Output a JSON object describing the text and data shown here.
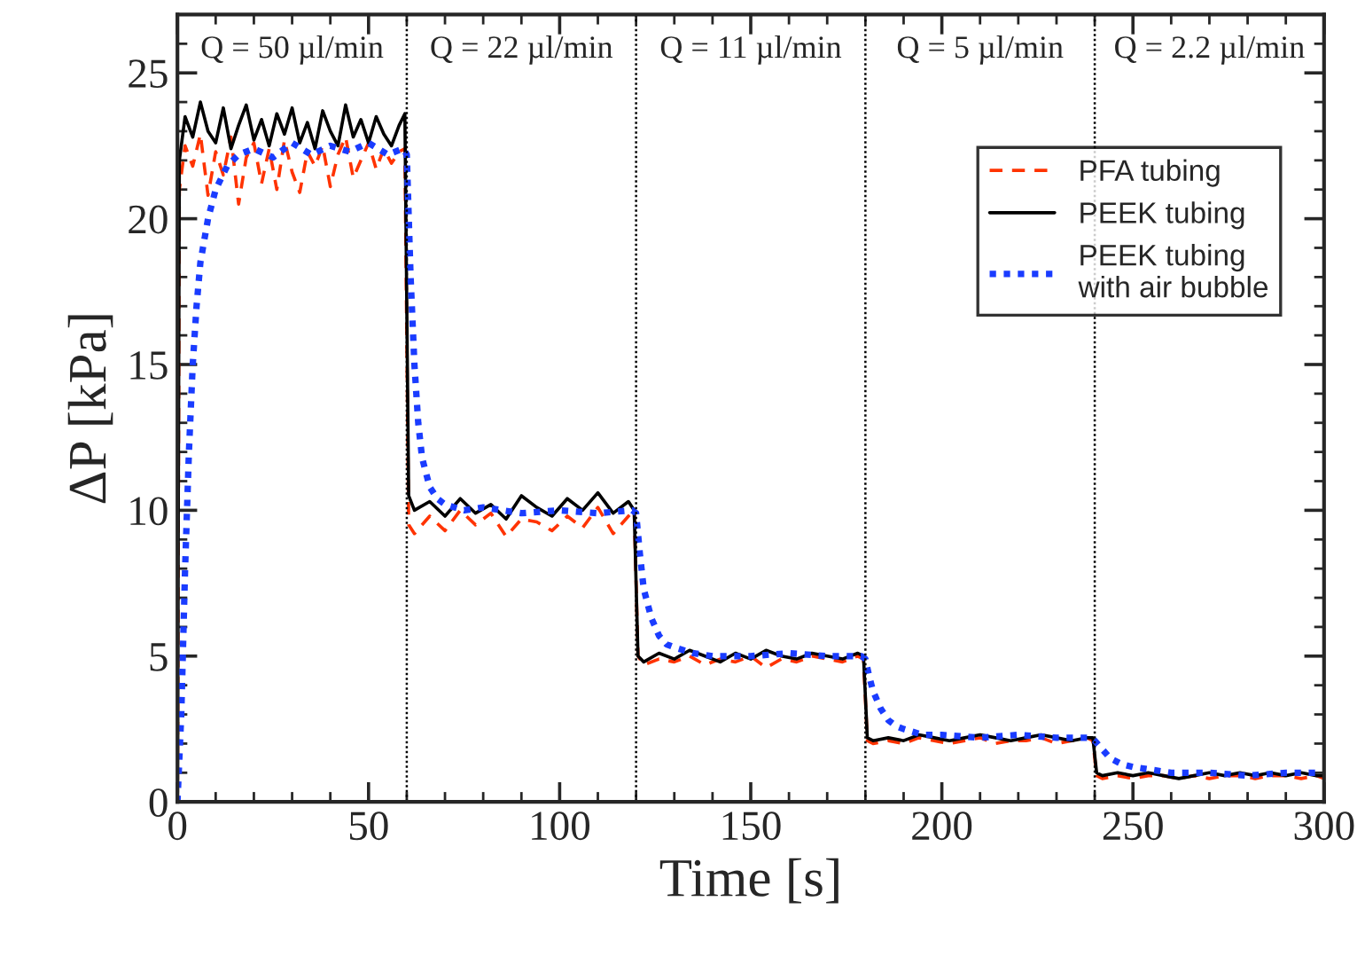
{
  "chart_data": {
    "type": "line",
    "xlabel": "Time [s]",
    "ylabel": "ΔP [kPa]",
    "xlim": [
      0,
      300
    ],
    "xticks": [
      0,
      50,
      100,
      150,
      200,
      250,
      300
    ],
    "ylim": [
      0,
      27
    ],
    "yticks": [
      0,
      5,
      10,
      15,
      20,
      25
    ],
    "grid": false,
    "legend": "top right",
    "marker": "none",
    "ref_lines": [
      {
        "axis": "x",
        "value": 60,
        "line_style": "dotted",
        "color": "#000000"
      },
      {
        "axis": "x",
        "value": 120,
        "line_style": "dotted",
        "color": "#000000"
      },
      {
        "axis": "x",
        "value": 180,
        "line_style": "dotted",
        "color": "#000000"
      },
      {
        "axis": "x",
        "value": 240,
        "line_style": "dotted",
        "color": "#000000"
      }
    ],
    "annotations": [
      "Q = 50 µl/min",
      "Q = 22 µl/min",
      "Q = 11 µl/min",
      "Q = 5 µl/min",
      "Q = 2.2 µl/min"
    ],
    "series": [
      {
        "name": "PFA tubing",
        "color": "#ff3300",
        "line_style": "dashed",
        "x": [
          0,
          0.5,
          2,
          4,
          6,
          8,
          10,
          12,
          14,
          16,
          18,
          20,
          22,
          24,
          26,
          28,
          30,
          32,
          34,
          36,
          38,
          40,
          42,
          44,
          46,
          48,
          50,
          52,
          54,
          56,
          58,
          59.5,
          60.5,
          62,
          66,
          70,
          74,
          78,
          82,
          86,
          90,
          94,
          98,
          102,
          106,
          110,
          114,
          118,
          119.5,
          120.5,
          122,
          126,
          130,
          134,
          138,
          142,
          146,
          150,
          154,
          158,
          162,
          166,
          170,
          174,
          178,
          179.5,
          180.5,
          182,
          186,
          190,
          194,
          198,
          202,
          206,
          210,
          214,
          218,
          222,
          226,
          230,
          234,
          238,
          239.5,
          240.5,
          242,
          246,
          250,
          254,
          258,
          262,
          266,
          270,
          274,
          278,
          282,
          286,
          290,
          294,
          298,
          300
        ],
        "values": [
          0,
          21,
          22.5,
          21.8,
          22.9,
          20.8,
          22.3,
          21.5,
          22.8,
          20.5,
          22.1,
          22.6,
          21.2,
          22.4,
          21,
          22.7,
          21.6,
          20.9,
          22.3,
          21.8,
          22.5,
          21.1,
          22.2,
          22.8,
          21.4,
          22,
          22.6,
          21.7,
          22.4,
          21.9,
          22.3,
          22.4,
          9.5,
          9.2,
          9.8,
          9.3,
          10,
          9.5,
          9.9,
          9.1,
          9.7,
          9.6,
          9.3,
          9.8,
          9.4,
          10.1,
          9.2,
          9.8,
          10,
          5,
          4.7,
          4.9,
          4.8,
          5,
          4.7,
          4.9,
          4.8,
          5,
          4.6,
          4.9,
          4.8,
          5,
          4.9,
          4.8,
          5,
          4.9,
          2.1,
          2,
          2.1,
          2,
          2.2,
          2.1,
          2,
          2.1,
          2.2,
          2,
          2.1,
          2.1,
          2.2,
          2,
          2.1,
          2.2,
          2.1,
          0.9,
          0.8,
          0.9,
          0.8,
          0.9,
          0.9,
          0.8,
          0.9,
          0.8,
          0.9,
          0.9,
          0.8,
          0.9,
          0.9,
          0.8,
          0.9,
          0.8
        ]
      },
      {
        "name": "PEEK tubing",
        "color": "#000000",
        "line_style": "solid",
        "x": [
          0,
          0.5,
          2,
          4,
          6,
          8,
          10,
          12,
          14,
          16,
          18,
          20,
          22,
          24,
          26,
          28,
          30,
          32,
          34,
          36,
          38,
          40,
          42,
          44,
          46,
          48,
          50,
          52,
          54,
          56,
          58,
          59.5,
          60.5,
          62,
          66,
          70,
          74,
          78,
          82,
          86,
          90,
          94,
          98,
          102,
          106,
          110,
          114,
          118,
          119.5,
          120.5,
          122,
          126,
          130,
          134,
          138,
          142,
          146,
          150,
          154,
          158,
          162,
          166,
          170,
          174,
          178,
          179.5,
          180.5,
          182,
          186,
          190,
          194,
          198,
          202,
          206,
          210,
          214,
          218,
          222,
          226,
          230,
          234,
          238,
          239.5,
          240.5,
          242,
          246,
          250,
          254,
          258,
          262,
          266,
          270,
          274,
          278,
          282,
          286,
          290,
          294,
          298,
          300
        ],
        "values": [
          0,
          22,
          23.5,
          22.8,
          24,
          23,
          22.6,
          23.8,
          22.4,
          23.2,
          23.9,
          22.7,
          23.4,
          22.5,
          23.6,
          22.9,
          23.8,
          22.6,
          23.3,
          22.4,
          23.7,
          23,
          22.5,
          23.9,
          22.8,
          23.4,
          22.6,
          23.5,
          22.9,
          22.5,
          23.2,
          23.6,
          10.5,
          10,
          10.3,
          9.8,
          10.4,
          9.9,
          10.2,
          9.7,
          10.5,
          10.1,
          9.8,
          10.4,
          10,
          10.6,
          9.9,
          10.3,
          10,
          5,
          4.8,
          5.1,
          4.9,
          5.2,
          5,
          4.8,
          5.1,
          4.9,
          5.2,
          5,
          4.9,
          5.1,
          5,
          4.9,
          5.1,
          5,
          2.2,
          2.1,
          2.2,
          2.1,
          2.3,
          2.2,
          2.1,
          2.2,
          2.3,
          2.2,
          2.1,
          2.2,
          2.3,
          2.2,
          2.1,
          2.2,
          2.2,
          1,
          0.9,
          1,
          0.9,
          1,
          0.9,
          0.8,
          0.9,
          1,
          0.9,
          1,
          0.9,
          1,
          0.9,
          1,
          0.9,
          0.9
        ]
      },
      {
        "name": "PEEK tubing\nwith air bubble",
        "color": "#1a3cff",
        "line_style": "dotted",
        "x": [
          0,
          1,
          2,
          3,
          4,
          5,
          6,
          8,
          10,
          13,
          16,
          20,
          25,
          30,
          35,
          40,
          45,
          50,
          55,
          59,
          60,
          61,
          62,
          63,
          64,
          66,
          68,
          70,
          75,
          80,
          90,
          100,
          110,
          119,
          120,
          121,
          122,
          124,
          126,
          128,
          130,
          135,
          140,
          150,
          160,
          170,
          179,
          180,
          181,
          182,
          184,
          186,
          188,
          190,
          195,
          200,
          210,
          220,
          230,
          239,
          240,
          242,
          244,
          247,
          250,
          255,
          260,
          270,
          280,
          290,
          300
        ],
        "values": [
          0,
          3,
          8,
          12,
          15,
          17,
          18.5,
          20,
          21,
          21.8,
          22.2,
          22.4,
          22.1,
          22.6,
          22.2,
          22.5,
          22.3,
          22.6,
          22.2,
          22.4,
          22.2,
          18,
          15,
          13,
          11.8,
          10.8,
          10.4,
          10.2,
          10,
          10.1,
          9.9,
          10,
          9.9,
          10,
          9.9,
          8.5,
          7.3,
          6.3,
          5.7,
          5.4,
          5.3,
          5.1,
          5,
          5,
          5.1,
          5,
          5,
          4.9,
          4.3,
          3.8,
          3.2,
          2.8,
          2.6,
          2.5,
          2.3,
          2.3,
          2.2,
          2.3,
          2.2,
          2.2,
          2.1,
          1.8,
          1.5,
          1.3,
          1.2,
          1.1,
          1,
          1,
          0.9,
          1,
          1
        ]
      }
    ]
  }
}
